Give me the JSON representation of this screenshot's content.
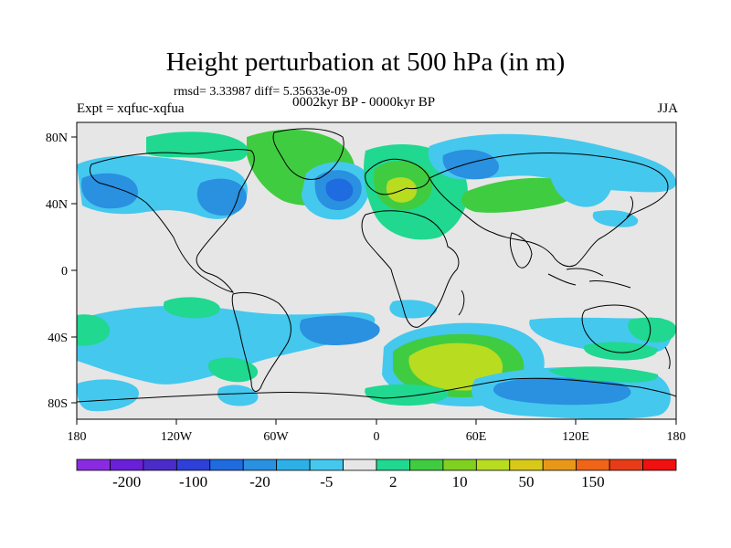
{
  "title": "Height perturbation at 500 hPa (in m)",
  "stats": "rmsd= 3.33987 diff= 5.35633e-09",
  "experiment": "Expt = xqfuc-xqfua",
  "subtitle": "0002kyr BP - 0000kyr BP",
  "season": "JJA",
  "lat_labels": [
    "80N",
    "40N",
    "0",
    "40S",
    "80S"
  ],
  "lon_labels": [
    "180",
    "120W",
    "60W",
    "0",
    "60E",
    "120E",
    "180"
  ],
  "colorbar": {
    "labels": [
      "-200",
      "-100",
      "-20",
      "-5",
      "2",
      "10",
      "50",
      "150"
    ],
    "colors": [
      "#8a2be2",
      "#6a1fd8",
      "#4b2cc8",
      "#2e40d8",
      "#1f6be0",
      "#2a90e0",
      "#2cb0e8",
      "#44c8ee",
      "#e6e6e6",
      "#20d890",
      "#40cc40",
      "#80d020",
      "#b8dc20",
      "#d8c818",
      "#e89818",
      "#f06418",
      "#e83c18",
      "#f01010"
    ]
  },
  "colors": {
    "land_background": "#e6e6e6",
    "coastline": "#000000"
  }
}
